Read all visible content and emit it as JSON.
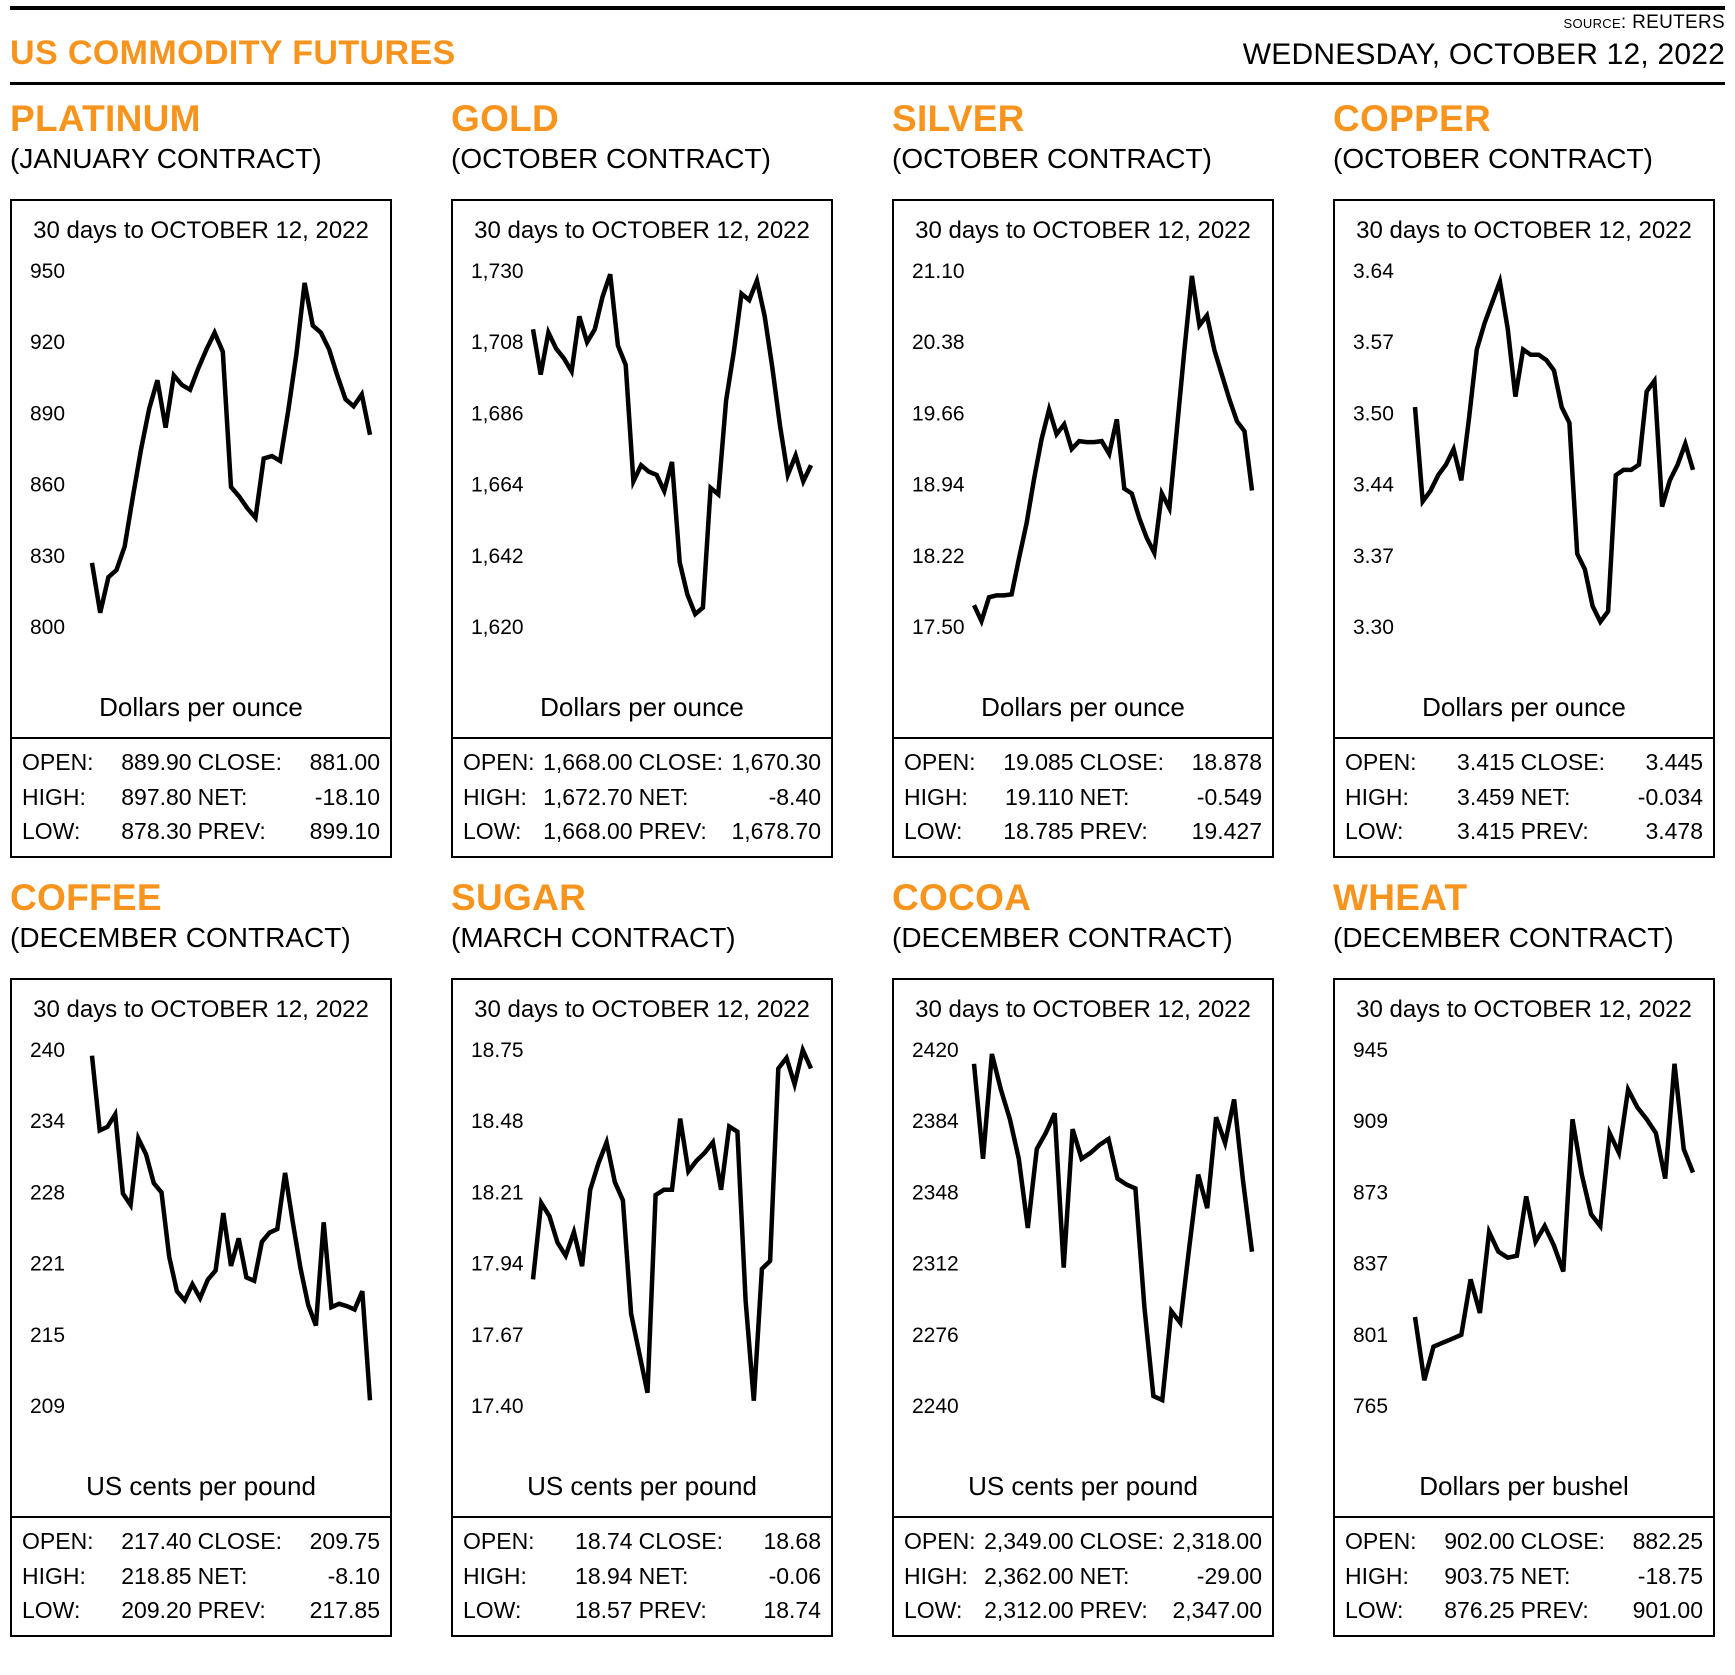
{
  "header": {
    "source_label": "Source:",
    "source_value": "REUTERS",
    "title": "US COMMODITY FUTURES",
    "date": "WEDNESDAY, OCTOBER 12, 2022"
  },
  "colors": {
    "accent": "#F7941D",
    "line": "#000000"
  },
  "stat_labels": {
    "open": "OPEN:",
    "high": "HIGH:",
    "low": "LOW:",
    "close": "CLOSE:",
    "net": "NET:",
    "prev": "PREV:"
  },
  "panels": [
    {
      "commodity": "PLATINUM",
      "contract": "(JANUARY CONTRACT)",
      "period": "30 days to OCTOBER 12, 2022",
      "unit": "Dollars per ounce",
      "stats": {
        "open": "889.90",
        "close": "881.00",
        "high": "897.80",
        "net": "-18.10",
        "low": "878.30",
        "prev": "899.10"
      }
    },
    {
      "commodity": "GOLD",
      "contract": "(OCTOBER CONTRACT)",
      "period": "30 days to OCTOBER 12, 2022",
      "unit": "Dollars per ounce",
      "stats": {
        "open": "1,668.00",
        "close": "1,670.30",
        "high": "1,672.70",
        "net": "-8.40",
        "low": "1,668.00",
        "prev": "1,678.70"
      }
    },
    {
      "commodity": "SILVER",
      "contract": "(OCTOBER CONTRACT)",
      "period": "30 days to OCTOBER 12, 2022",
      "unit": "Dollars per ounce",
      "stats": {
        "open": "19.085",
        "close": "18.878",
        "high": "19.110",
        "net": "-0.549",
        "low": "18.785",
        "prev": "19.427"
      }
    },
    {
      "commodity": "COPPER",
      "contract": "(OCTOBER CONTRACT)",
      "period": "30 days to OCTOBER 12, 2022",
      "unit": "Dollars per ounce",
      "stats": {
        "open": "3.415",
        "close": "3.445",
        "high": "3.459",
        "net": "-0.034",
        "low": "3.415",
        "prev": "3.478"
      }
    },
    {
      "commodity": "COFFEE",
      "contract": "(DECEMBER CONTRACT)",
      "period": "30 days to OCTOBER 12, 2022",
      "unit": "US cents per pound",
      "stats": {
        "open": "217.40",
        "close": "209.75",
        "high": "218.85",
        "net": "-8.10",
        "low": "209.20",
        "prev": "217.85"
      }
    },
    {
      "commodity": "SUGAR",
      "contract": "(MARCH CONTRACT)",
      "period": "30 days to OCTOBER 12, 2022",
      "unit": "US cents per pound",
      "stats": {
        "open": "18.74",
        "close": "18.68",
        "high": "18.94",
        "net": "-0.06",
        "low": "18.57",
        "prev": "18.74"
      }
    },
    {
      "commodity": "COCOA",
      "contract": "(DECEMBER CONTRACT)",
      "period": "30 days to OCTOBER 12, 2022",
      "unit": "US cents per pound",
      "stats": {
        "open": "2,349.00",
        "close": "2,318.00",
        "high": "2,362.00",
        "net": "-29.00",
        "low": "2,312.00",
        "prev": "2,347.00"
      }
    },
    {
      "commodity": "WHEAT",
      "contract": "(DECEMBER CONTRACT)",
      "period": "30 days to OCTOBER 12, 2022",
      "unit": "Dollars per bushel",
      "stats": {
        "open": "902.00",
        "close": "882.25",
        "high": "903.75",
        "net": "-18.75",
        "low": "876.25",
        "prev": "901.00"
      }
    }
  ],
  "chart_data": [
    {
      "type": "line",
      "title": "PLATINUM (JANUARY CONTRACT)",
      "subtitle": "30 days to OCTOBER 12, 2022",
      "ylabel": "Dollars per ounce",
      "ytick_labels": [
        "950",
        "920",
        "890",
        "860",
        "830",
        "800"
      ],
      "ylim": [
        800,
        950
      ],
      "grid": false,
      "values": [
        827,
        806,
        821,
        824,
        834,
        855,
        875,
        892,
        904,
        884,
        906,
        902,
        900,
        909,
        917,
        924,
        916,
        859,
        855,
        850,
        846,
        871,
        872,
        870,
        891,
        915,
        945,
        927,
        924,
        917,
        906,
        896,
        893,
        898,
        881
      ]
    },
    {
      "type": "line",
      "title": "GOLD (OCTOBER CONTRACT)",
      "subtitle": "30 days to OCTOBER 12, 2022",
      "ylabel": "Dollars per ounce",
      "ytick_labels": [
        "1,730",
        "1,708",
        "1,686",
        "1,664",
        "1,642",
        "1,620"
      ],
      "ylim": [
        1620,
        1730
      ],
      "grid": false,
      "values": [
        1712,
        1698,
        1711,
        1706,
        1703,
        1699,
        1716,
        1708,
        1712,
        1722,
        1729,
        1707,
        1701,
        1665,
        1670,
        1668,
        1667,
        1662,
        1671,
        1640,
        1630,
        1624,
        1626,
        1663,
        1661,
        1690,
        1705,
        1723,
        1721,
        1727,
        1716,
        1700,
        1682,
        1667,
        1673,
        1665,
        1670
      ]
    },
    {
      "type": "line",
      "title": "SILVER (OCTOBER CONTRACT)",
      "subtitle": "30 days to OCTOBER 12, 2022",
      "ylabel": "Dollars per ounce",
      "ytick_labels": [
        "21.10",
        "20.38",
        "19.66",
        "18.94",
        "18.22",
        "17.50"
      ],
      "ylim": [
        17.5,
        21.1
      ],
      "grid": false,
      "values": [
        17.72,
        17.56,
        17.8,
        17.82,
        17.82,
        17.83,
        18.2,
        18.55,
        19.0,
        19.4,
        19.7,
        19.45,
        19.55,
        19.3,
        19.38,
        19.37,
        19.37,
        19.38,
        19.25,
        19.6,
        18.9,
        18.85,
        18.6,
        18.4,
        18.25,
        18.85,
        18.7,
        19.5,
        20.3,
        21.05,
        20.55,
        20.65,
        20.3,
        20.05,
        19.8,
        19.58,
        19.48,
        18.88
      ]
    },
    {
      "type": "line",
      "title": "COPPER (OCTOBER CONTRACT)",
      "subtitle": "30 days to OCTOBER 12, 2022",
      "ylabel": "Dollars per ounce",
      "ytick_labels": [
        "3.64",
        "3.57",
        "3.50",
        "3.44",
        "3.37",
        "3.30"
      ],
      "ylim": [
        3.3,
        3.64
      ],
      "grid": false,
      "values": [
        3.51,
        3.42,
        3.43,
        3.445,
        3.455,
        3.47,
        3.44,
        3.5,
        3.565,
        3.59,
        3.61,
        3.63,
        3.585,
        3.52,
        3.565,
        3.56,
        3.56,
        3.555,
        3.545,
        3.51,
        3.495,
        3.37,
        3.355,
        3.32,
        3.305,
        3.315,
        3.445,
        3.45,
        3.45,
        3.455,
        3.525,
        3.535,
        3.415,
        3.44,
        3.455,
        3.475,
        3.45
      ]
    },
    {
      "type": "line",
      "title": "COFFEE (DECEMBER CONTRACT)",
      "subtitle": "30 days to OCTOBER 12, 2022",
      "ylabel": "US cents per pound",
      "ytick_labels": [
        "240",
        "234",
        "228",
        "221",
        "215",
        "209"
      ],
      "ylim": [
        209,
        240
      ],
      "grid": false,
      "values": [
        239.5,
        233.0,
        233.3,
        234.4,
        227.5,
        226.5,
        232.3,
        230.9,
        228.4,
        227.6,
        222.0,
        219.0,
        218.2,
        219.6,
        218.4,
        220.0,
        220.8,
        225.8,
        221.2,
        223.6,
        220.2,
        219.9,
        223.3,
        224.1,
        224.4,
        229.3,
        225.0,
        221.0,
        217.8,
        216.0,
        225.0,
        217.6,
        217.9,
        217.7,
        217.4,
        219.0,
        209.5
      ]
    },
    {
      "type": "line",
      "title": "SUGAR (MARCH CONTRACT)",
      "subtitle": "30 days to OCTOBER 12, 2022",
      "ylabel": "US cents per pound",
      "ytick_labels": [
        "18.75",
        "18.48",
        "18.21",
        "17.94",
        "17.67",
        "17.40"
      ],
      "ylim": [
        17.4,
        18.75
      ],
      "grid": false,
      "values": [
        17.88,
        18.17,
        18.12,
        18.02,
        17.97,
        18.06,
        17.93,
        18.22,
        18.32,
        18.4,
        18.25,
        18.18,
        17.75,
        17.6,
        17.45,
        18.2,
        18.22,
        18.22,
        18.49,
        18.29,
        18.33,
        18.36,
        18.4,
        18.22,
        18.46,
        18.44,
        17.8,
        17.42,
        17.92,
        17.95,
        18.68,
        18.72,
        18.62,
        18.75,
        18.68
      ]
    },
    {
      "type": "line",
      "title": "COCOA (DECEMBER CONTRACT)",
      "subtitle": "30 days to OCTOBER 12, 2022",
      "ylabel": "US cents per pound",
      "ytick_labels": [
        "2420",
        "2384",
        "2348",
        "2312",
        "2276",
        "2240"
      ],
      "ylim": [
        2240,
        2420
      ],
      "grid": false,
      "values": [
        2413,
        2365,
        2418,
        2400,
        2385,
        2365,
        2330,
        2370,
        2378,
        2388,
        2310,
        2380,
        2365,
        2368,
        2372,
        2375,
        2355,
        2352,
        2350,
        2290,
        2245,
        2243,
        2288,
        2282,
        2320,
        2357,
        2340,
        2386,
        2373,
        2395,
        2354,
        2318
      ]
    },
    {
      "type": "line",
      "title": "WHEAT (DECEMBER CONTRACT)",
      "subtitle": "30 days to OCTOBER 12, 2022",
      "ylabel": "Dollars per bushel",
      "ytick_labels": [
        "945",
        "909",
        "873",
        "837",
        "801",
        "765"
      ],
      "ylim": [
        765,
        945
      ],
      "grid": false,
      "values": [
        810,
        778,
        795,
        797,
        799,
        801,
        829,
        812,
        853,
        843,
        840,
        841,
        871,
        848,
        856,
        846,
        833,
        910,
        882,
        862,
        856,
        903,
        893,
        925,
        916,
        910,
        903,
        880,
        938,
        895,
        883
      ]
    }
  ]
}
